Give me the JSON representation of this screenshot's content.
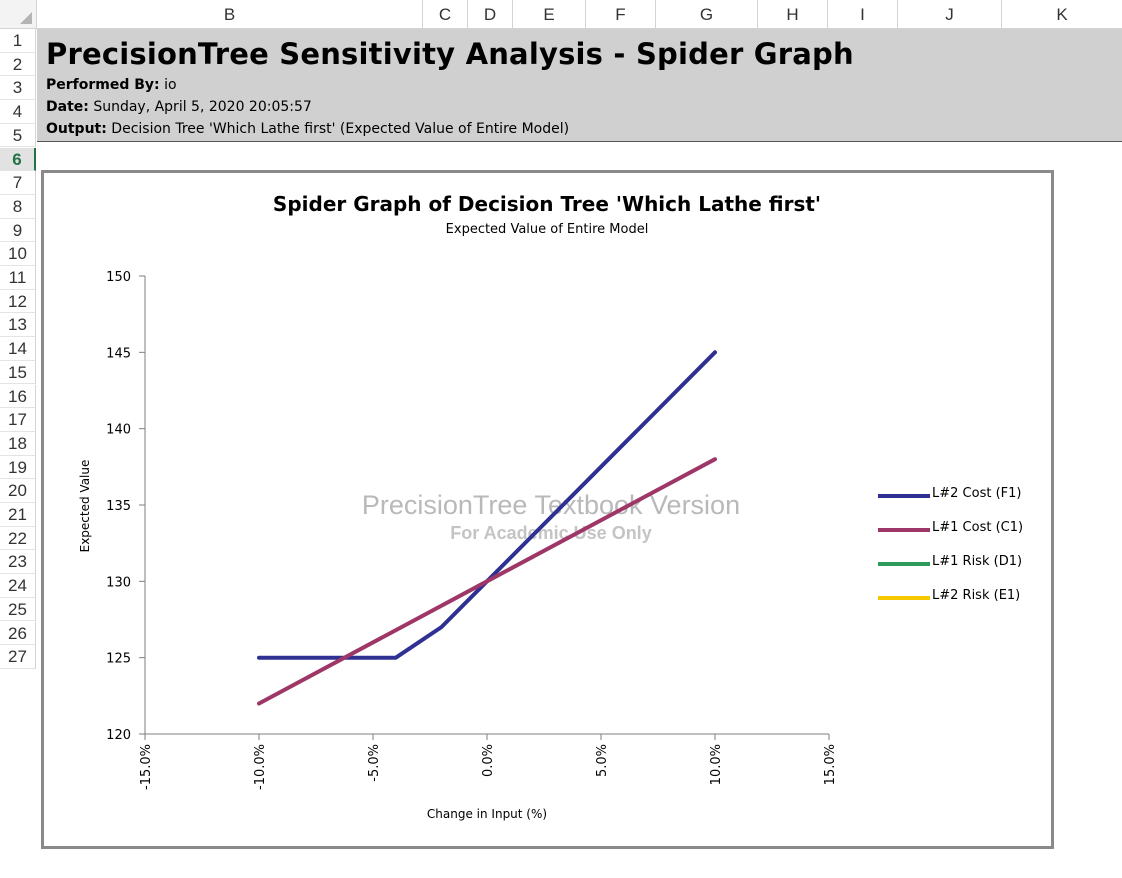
{
  "columns": [
    "B",
    "C",
    "D",
    "E",
    "F",
    "G",
    "H",
    "I",
    "J",
    "K"
  ],
  "rows": [
    "1",
    "2",
    "3",
    "4",
    "5",
    "6",
    "7",
    "8",
    "9",
    "10",
    "11",
    "12",
    "13",
    "14",
    "15",
    "16",
    "17",
    "18",
    "19",
    "20",
    "21",
    "22",
    "23",
    "24",
    "25",
    "26",
    "27"
  ],
  "selected_row": "6",
  "banner": {
    "title": "PrecisionTree Sensitivity Analysis - Spider Graph",
    "performed_by_label": "Performed By:",
    "performed_by_value": "io",
    "date_label": "Date:",
    "date_value": "Sunday, April 5, 2020 20:05:57",
    "output_label": "Output:",
    "output_value": "Decision Tree 'Which Lathe first' (Expected Value of Entire Model)"
  },
  "watermark": {
    "line1": "PrecisionTree Textbook Version",
    "line2": "For Academic Use Only"
  },
  "chart_data": {
    "type": "line",
    "title": "Spider Graph of Decision Tree 'Which Lathe first'",
    "subtitle": "Expected Value of Entire Model",
    "xlabel": "Change in Input (%)",
    "ylabel": "Expected Value",
    "xlim": [
      -15,
      15
    ],
    "ylim": [
      120,
      150
    ],
    "xticks": [
      -15,
      -10,
      -5,
      0,
      5,
      10,
      15
    ],
    "xtick_labels": [
      "-15.0%",
      "-10.0%",
      "-5.0%",
      "0.0%",
      "5.0%",
      "10.0%",
      "15.0%"
    ],
    "yticks": [
      120,
      125,
      130,
      135,
      140,
      145,
      150
    ],
    "ytick_labels": [
      "120",
      "125",
      "130",
      "135",
      "140",
      "145",
      "150"
    ],
    "grid": false,
    "legend_position": "right",
    "series": [
      {
        "name": "L#2 Cost (F1)",
        "color": "#2e3192",
        "x": [
          -10,
          -4,
          -2,
          0,
          2,
          10
        ],
        "y": [
          125,
          125,
          127,
          130,
          133,
          145
        ]
      },
      {
        "name": "L#1 Cost (C1)",
        "color": "#9e3768",
        "x": [
          -10,
          0,
          10
        ],
        "y": [
          122,
          130,
          138
        ]
      },
      {
        "name": "L#1 Risk (D1)",
        "color": "#2e9a5c",
        "x": [],
        "y": []
      },
      {
        "name": "L#2 Risk (E1)",
        "color": "#f5c800",
        "x": [],
        "y": []
      }
    ]
  }
}
